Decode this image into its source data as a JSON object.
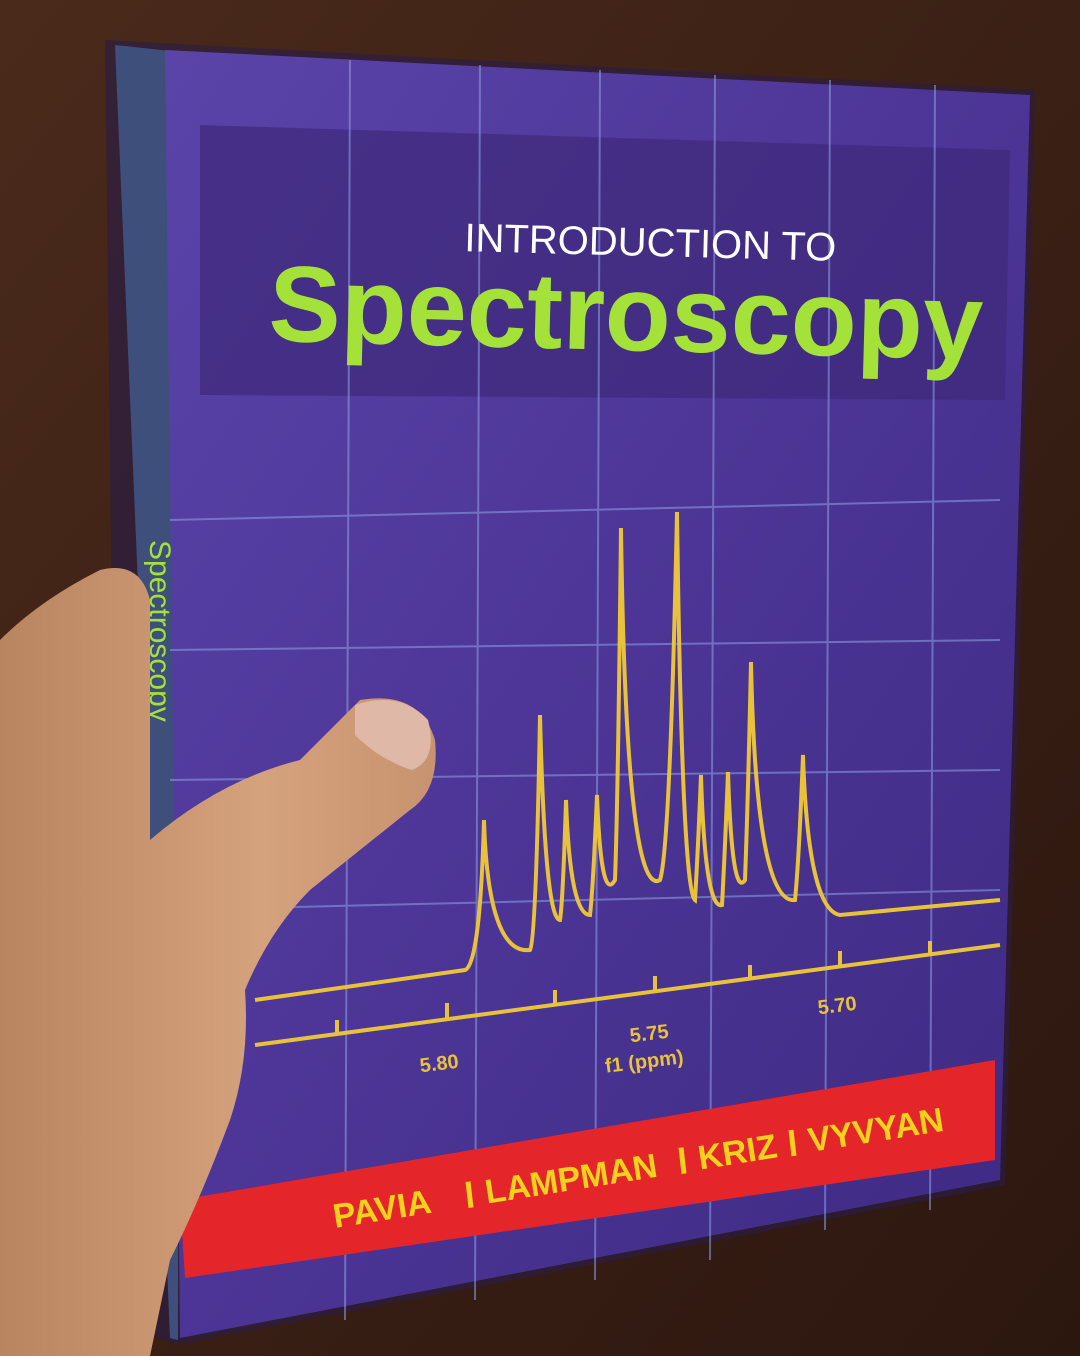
{
  "cover": {
    "kicker": "INTRODUCTION TO",
    "title": "Spectroscopy",
    "spectrum_axis": {
      "ticks": [
        "5.80",
        "5.75",
        "5.70"
      ],
      "label": "f1 (ppm)"
    },
    "authors": [
      "PAVIA",
      "LAMPMAN",
      "KRIZ",
      "VYVYAN"
    ],
    "spine_title": "Spectroscopy"
  }
}
